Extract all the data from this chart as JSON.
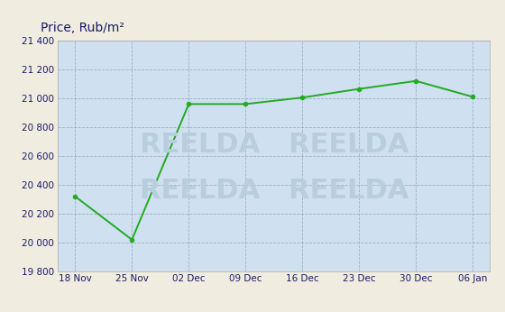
{
  "x_labels": [
    "18 Nov",
    "25 Nov",
    "02 Dec",
    "09 Dec",
    "16 Dec",
    "23 Dec",
    "30 Dec",
    "06 Jan"
  ],
  "y_values": [
    20320,
    20020,
    20960,
    20960,
    21005,
    21065,
    21120,
    21010
  ],
  "title": "Price, Rub/m²",
  "ylim": [
    19800,
    21400
  ],
  "yticks": [
    19800,
    20000,
    20200,
    20400,
    20600,
    20800,
    21000,
    21200,
    21400
  ],
  "line_color": "#22aa22",
  "marker_color": "#22aa22",
  "bg_color": "#cfe0f0",
  "outer_bg": "#f0ece0",
  "grid_color": "#8899bb",
  "title_color": "#1a1a6a",
  "tick_color": "#1a1a6a",
  "watermark_lines": [
    "REELDA",
    "REELDA"
  ],
  "watermark_color": "#b8cedd"
}
